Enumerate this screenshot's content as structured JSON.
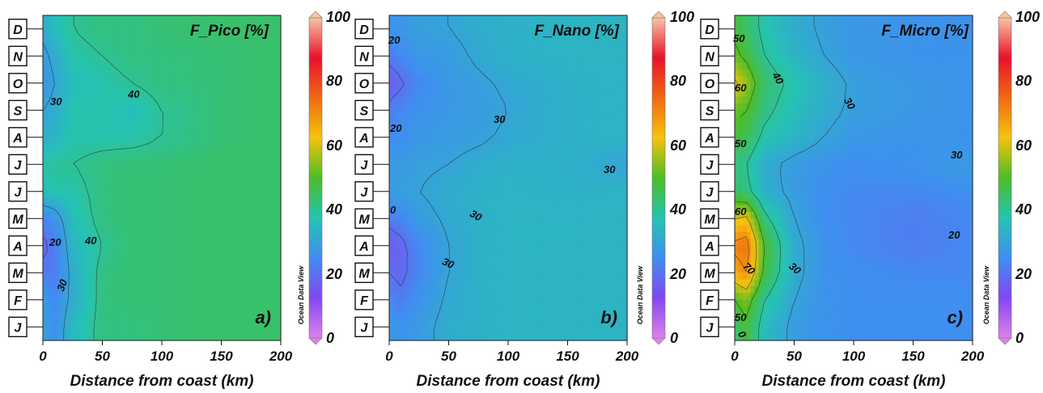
{
  "figure": {
    "panels": [
      {
        "title": "F_Pico [%]",
        "panel_label": "a)",
        "contour_labels": [
          "30",
          "40",
          "20",
          "40",
          "30"
        ]
      },
      {
        "title": "F_Nano [%]",
        "panel_label": "b)",
        "contour_labels": [
          "20",
          "30",
          "20",
          "30",
          "30",
          "0",
          "30"
        ]
      },
      {
        "title": "F_Micro [%]",
        "panel_label": "c)",
        "contour_labels": [
          "50",
          "40",
          "60",
          "30",
          "50",
          "30",
          "60",
          "20",
          "70",
          "30",
          "50",
          "0"
        ]
      }
    ],
    "month_labels": [
      "D",
      "N",
      "O",
      "S",
      "A",
      "J",
      "J",
      "M",
      "A",
      "M",
      "F",
      "J"
    ],
    "x_ticks": [
      "0",
      "50",
      "100",
      "150",
      "200"
    ],
    "x_label": "Distance from coast (km)",
    "colorbar": {
      "ticks": [
        "100",
        "80",
        "60",
        "40",
        "20",
        "0"
      ],
      "label": "Ocean Data View",
      "colors": [
        "#f7c4a6",
        "#e8122a",
        "#f06a12",
        "#f5c30e",
        "#4cbd27",
        "#25c3b2",
        "#3f8ff0",
        "#8346f0",
        "#dd82ea"
      ]
    }
  },
  "chart_data": [
    {
      "type": "heatmap",
      "title": "F_Pico [%]",
      "xlabel": "Distance from coast (km)",
      "ylabel": "",
      "xlim": [
        0,
        200
      ],
      "y_categories": [
        "J",
        "F",
        "M",
        "A",
        "M",
        "J",
        "J",
        "A",
        "S",
        "O",
        "N",
        "D"
      ],
      "clim": [
        0,
        100
      ],
      "x": [
        0,
        10,
        25,
        50,
        75,
        100,
        150,
        200
      ],
      "z": [
        [
          30,
          25,
          35,
          42,
          42,
          43,
          44,
          44
        ],
        [
          28,
          24,
          32,
          42,
          43,
          43,
          44,
          44
        ],
        [
          22,
          22,
          32,
          42,
          43,
          43,
          44,
          44
        ],
        [
          18,
          22,
          34,
          40,
          43,
          43,
          44,
          44
        ],
        [
          24,
          26,
          36,
          42,
          43,
          43,
          44,
          44
        ],
        [
          36,
          38,
          38,
          42,
          43,
          43,
          44,
          44
        ],
        [
          38,
          40,
          40,
          42,
          43,
          43,
          44,
          44
        ],
        [
          32,
          34,
          38,
          38,
          38,
          40,
          43,
          44
        ],
        [
          30,
          32,
          38,
          38,
          36,
          40,
          43,
          44
        ],
        [
          26,
          30,
          36,
          38,
          40,
          42,
          43,
          44
        ],
        [
          28,
          32,
          38,
          40,
          42,
          42,
          43,
          44
        ],
        [
          32,
          36,
          40,
          42,
          42,
          43,
          44,
          44
        ]
      ]
    },
    {
      "type": "heatmap",
      "title": "F_Nano [%]",
      "xlabel": "Distance from coast (km)",
      "ylabel": "",
      "xlim": [
        0,
        200
      ],
      "y_categories": [
        "J",
        "F",
        "M",
        "A",
        "M",
        "J",
        "J",
        "A",
        "S",
        "O",
        "N",
        "D"
      ],
      "clim": [
        0,
        100
      ],
      "x": [
        0,
        10,
        25,
        50,
        75,
        100,
        150,
        200
      ],
      "z": [
        [
          28,
          26,
          28,
          32,
          33,
          34,
          34,
          34
        ],
        [
          24,
          22,
          26,
          31,
          33,
          34,
          34,
          34
        ],
        [
          20,
          18,
          24,
          30,
          33,
          34,
          34,
          34
        ],
        [
          16,
          18,
          24,
          30,
          33,
          34,
          34,
          34
        ],
        [
          22,
          24,
          28,
          31,
          33,
          34,
          34,
          34
        ],
        [
          28,
          29,
          30,
          32,
          33,
          34,
          33,
          34
        ],
        [
          28,
          28,
          29,
          30,
          32,
          33,
          33,
          30
        ],
        [
          24,
          25,
          27,
          28,
          29,
          31,
          33,
          34
        ],
        [
          22,
          24,
          26,
          27,
          28,
          30,
          33,
          34
        ],
        [
          16,
          19,
          24,
          27,
          29,
          31,
          33,
          34
        ],
        [
          22,
          24,
          27,
          28,
          31,
          33,
          34,
          34
        ],
        [
          26,
          27,
          29,
          30,
          32,
          33,
          34,
          34
        ]
      ]
    },
    {
      "type": "heatmap",
      "title": "F_Micro [%]",
      "xlabel": "Distance from coast (km)",
      "ylabel": "",
      "xlim": [
        0,
        200
      ],
      "y_categories": [
        "J",
        "F",
        "M",
        "A",
        "M",
        "J",
        "J",
        "A",
        "S",
        "O",
        "N",
        "D"
      ],
      "clim": [
        0,
        100
      ],
      "x": [
        0,
        10,
        25,
        50,
        75,
        100,
        150,
        200
      ],
      "z": [
        [
          44,
          48,
          36,
          28,
          26,
          25,
          25,
          25
        ],
        [
          50,
          54,
          40,
          30,
          26,
          25,
          25,
          25
        ],
        [
          66,
          70,
          48,
          32,
          26,
          25,
          24,
          24
        ],
        [
          72,
          74,
          50,
          32,
          26,
          24,
          22,
          24
        ],
        [
          60,
          62,
          42,
          30,
          25,
          24,
          22,
          24
        ],
        [
          44,
          42,
          33,
          28,
          25,
          24,
          24,
          25
        ],
        [
          42,
          40,
          32,
          28,
          26,
          25,
          26,
          28
        ],
        [
          48,
          46,
          38,
          34,
          30,
          27,
          26,
          26
        ],
        [
          52,
          50,
          42,
          36,
          32,
          29,
          27,
          26
        ],
        [
          62,
          56,
          44,
          38,
          33,
          29,
          27,
          26
        ],
        [
          52,
          48,
          40,
          34,
          30,
          27,
          26,
          26
        ],
        [
          48,
          44,
          38,
          32,
          29,
          27,
          26,
          26
        ]
      ]
    }
  ]
}
